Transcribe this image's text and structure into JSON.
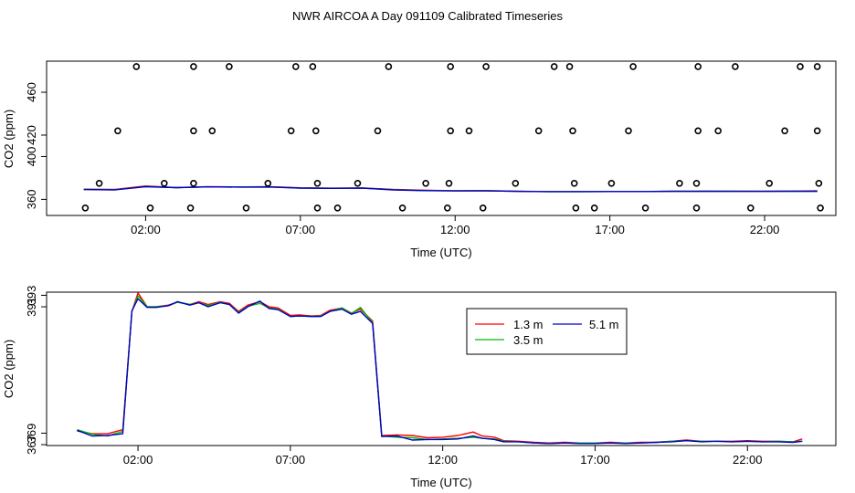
{
  "title": "NWR AIRCOA A  Day 091109  Calibrated Timeseries",
  "chart_data": [
    {
      "type": "scatter",
      "panel": "top",
      "xlabel": "Time (UTC)",
      "ylabel": "CO2 (ppm)",
      "xlim": [
        -1.2,
        24.3
      ],
      "ylim": [
        345,
        489
      ],
      "x_tick_labels": [
        "02:00",
        "07:00",
        "12:00",
        "17:00",
        "22:00"
      ],
      "x_ticks": [
        2,
        7,
        12,
        17,
        22
      ],
      "y_tick_labels": [
        "360",
        "400",
        "420",
        "460"
      ],
      "y_ticks": [
        360,
        400,
        420,
        460
      ],
      "point_series": {
        "name": "calibration points",
        "x": [
          1.7,
          3.55,
          4.7,
          6.85,
          7.4,
          9.85,
          11.85,
          13.0,
          15.2,
          15.7,
          17.75,
          19.85,
          21.05,
          23.15,
          23.7,
          1.1,
          3.55,
          4.15,
          6.7,
          7.5,
          9.5,
          11.85,
          12.45,
          14.7,
          15.8,
          17.6,
          19.85,
          20.5,
          22.65,
          23.7,
          0.5,
          2.6,
          3.55,
          5.95,
          7.55,
          8.85,
          11.05,
          11.8,
          13.95,
          15.85,
          17.05,
          19.25,
          19.8,
          22.15,
          23.75,
          0.05,
          2.15,
          3.45,
          5.25,
          7.55,
          8.2,
          10.3,
          11.75,
          12.9,
          15.9,
          16.5,
          18.15,
          19.8,
          21.55,
          23.8
        ],
        "y": [
          484,
          484,
          484,
          484,
          484,
          484,
          484,
          484,
          484,
          484,
          484,
          484,
          484,
          484,
          484,
          424,
          424,
          424,
          424,
          424,
          424,
          424,
          424,
          424,
          424,
          424,
          424,
          424,
          424,
          424,
          375,
          375,
          375,
          375,
          375,
          375,
          375,
          375,
          375,
          375,
          375,
          375,
          375,
          375,
          375,
          352,
          352,
          352,
          352,
          352,
          352,
          352,
          352,
          352,
          352,
          352,
          352,
          352,
          352,
          352
        ]
      },
      "series": [
        {
          "name": "1.3 m",
          "color": "#ff0000",
          "x": [
            0,
            1,
            2,
            3,
            4,
            5,
            6,
            7,
            8,
            9,
            10,
            11,
            12,
            13,
            14,
            15,
            16,
            17,
            18,
            19,
            20,
            21,
            22,
            23.7
          ],
          "values": [
            369.5,
            369.3,
            372.5,
            371.0,
            371.8,
            371.6,
            371.9,
            370.8,
            370.5,
            370.7,
            369.3,
            368.6,
            368.1,
            368.3,
            367.6,
            367.3,
            367.3,
            367.4,
            367.3,
            367.6,
            367.6,
            367.6,
            367.6,
            368.0
          ]
        },
        {
          "name": "3.5 m",
          "color": "#00bb00",
          "x": [
            0,
            1,
            2,
            3,
            4,
            5,
            6,
            7,
            8,
            9,
            10,
            11,
            12,
            13,
            14,
            15,
            16,
            17,
            18,
            19,
            20,
            21,
            22,
            23.7
          ],
          "values": [
            369.3,
            369.0,
            372.0,
            371.0,
            371.7,
            371.5,
            371.6,
            370.6,
            370.4,
            370.6,
            369.0,
            368.3,
            367.9,
            368.0,
            367.5,
            367.2,
            367.2,
            367.3,
            367.3,
            367.6,
            367.6,
            367.6,
            367.5,
            367.6
          ]
        },
        {
          "name": "5.1 m",
          "color": "#0000cc",
          "x": [
            0,
            1,
            2,
            3,
            4,
            5,
            6,
            7,
            8,
            9,
            10,
            11,
            12,
            13,
            14,
            15,
            16,
            17,
            18,
            19,
            20,
            21,
            22,
            23.7
          ],
          "values": [
            369.2,
            368.9,
            371.8,
            371.0,
            371.7,
            371.5,
            371.6,
            370.6,
            370.3,
            370.5,
            368.9,
            368.2,
            367.9,
            367.9,
            367.5,
            367.2,
            367.2,
            367.3,
            367.3,
            367.5,
            367.6,
            367.5,
            367.5,
            367.6
          ]
        }
      ]
    },
    {
      "type": "line",
      "panel": "bottom",
      "xlabel": "Time (UTC)",
      "ylabel": "CO2 (ppm)",
      "xlim": [
        -1.0,
        24.9
      ],
      "ylim": [
        366.85,
        393.55
      ],
      "x_tick_labels": [
        "02:00",
        "07:00",
        "12:00",
        "17:00",
        "22:00"
      ],
      "x_ticks": [
        2,
        7,
        12,
        17,
        22
      ],
      "y_tick_labels": [
        "367",
        "369",
        "391",
        "393"
      ],
      "y_ticks": [
        367,
        369,
        391,
        393
      ],
      "legend": {
        "position": "top-center",
        "entries": [
          "1.3 m",
          "5.1 m",
          "3.5 m"
        ]
      },
      "x": [
        0.0,
        0.5,
        1.0,
        1.5,
        1.8,
        2.0,
        2.3,
        2.6,
        3.0,
        3.3,
        3.7,
        4.0,
        4.3,
        4.7,
        5.0,
        5.3,
        5.6,
        6.0,
        6.3,
        6.6,
        7.0,
        7.3,
        7.7,
        8.0,
        8.3,
        8.7,
        9.0,
        9.3,
        9.7,
        10.0,
        10.5,
        11.0,
        11.5,
        12.0,
        12.5,
        13.0,
        13.3,
        13.7,
        14.0,
        14.5,
        15.0,
        15.5,
        16.0,
        16.5,
        17.0,
        17.5,
        18.0,
        18.5,
        19.0,
        19.5,
        20.0,
        20.5,
        21.0,
        21.5,
        22.0,
        22.5,
        23.0,
        23.5,
        23.8
      ],
      "series": [
        {
          "name": "1.3 m",
          "color": "#ff0000",
          "values": [
            369.4,
            368.9,
            368.9,
            369.6,
            390.2,
            393.4,
            391.0,
            391.0,
            391.3,
            391.8,
            391.4,
            391.9,
            391.4,
            391.9,
            391.6,
            390.2,
            391.3,
            391.9,
            391.0,
            390.8,
            389.5,
            389.6,
            389.4,
            389.5,
            390.4,
            390.8,
            389.9,
            390.6,
            388.5,
            368.6,
            368.7,
            368.6,
            368.2,
            368.3,
            368.6,
            369.2,
            368.5,
            368.3,
            367.7,
            367.6,
            367.4,
            367.3,
            367.4,
            367.3,
            367.3,
            367.4,
            367.3,
            367.4,
            367.4,
            367.6,
            367.8,
            367.6,
            367.6,
            367.6,
            367.7,
            367.6,
            367.6,
            367.5,
            368.0
          ]
        },
        {
          "name": "3.5 m",
          "color": "#00bb00",
          "values": [
            369.6,
            368.8,
            368.5,
            369.3,
            390.2,
            392.9,
            391.0,
            391.0,
            391.2,
            391.8,
            391.4,
            391.7,
            391.2,
            391.8,
            391.4,
            390.0,
            391.1,
            391.6,
            390.8,
            390.6,
            389.3,
            389.4,
            389.3,
            389.4,
            390.2,
            390.8,
            389.8,
            390.9,
            388.2,
            368.5,
            368.3,
            368.2,
            367.9,
            368.0,
            368.1,
            368.3,
            368.1,
            368.0,
            367.6,
            367.5,
            367.3,
            367.2,
            367.3,
            367.3,
            367.3,
            367.3,
            367.3,
            367.3,
            367.4,
            367.6,
            367.7,
            367.6,
            367.6,
            367.5,
            367.6,
            367.5,
            367.6,
            367.5,
            367.6
          ]
        },
        {
          "name": "5.1 m",
          "color": "#0000cc",
          "values": [
            369.5,
            368.5,
            368.6,
            368.9,
            390.3,
            392.4,
            390.9,
            390.9,
            391.2,
            391.9,
            391.3,
            391.7,
            391.0,
            391.7,
            391.4,
            389.9,
            391.0,
            392.0,
            390.7,
            390.5,
            389.3,
            389.4,
            389.3,
            389.3,
            390.2,
            390.6,
            389.7,
            390.2,
            388.1,
            368.4,
            368.5,
            367.8,
            367.9,
            367.9,
            368.0,
            368.5,
            368.1,
            367.9,
            367.5,
            367.5,
            367.3,
            367.2,
            367.3,
            367.2,
            367.2,
            367.3,
            367.2,
            367.3,
            367.4,
            367.5,
            367.7,
            367.5,
            367.6,
            367.5,
            367.6,
            367.5,
            367.5,
            367.4,
            367.6
          ]
        }
      ]
    }
  ]
}
